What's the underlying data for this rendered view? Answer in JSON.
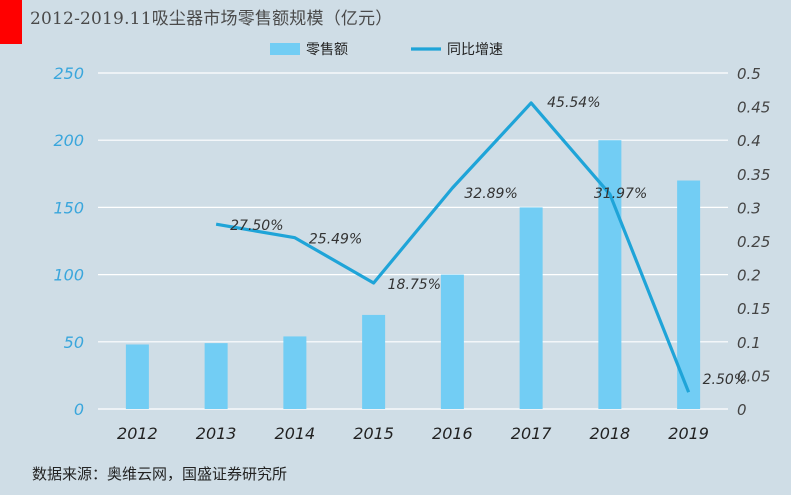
{
  "title": "2012-2019.11吸尘器市场零售额规模（亿元）",
  "source": "数据来源：奥维云网，国盛证券研究所",
  "colors": {
    "bar": "#72cdf4",
    "line": "#1fa4d8",
    "background": "#cfdde6",
    "left_axis_text": "#3aa6dc"
  },
  "chart_data": {
    "type": "bar",
    "categories": [
      "2012",
      "2013",
      "2014",
      "2015",
      "2016",
      "2017",
      "2018",
      "2019"
    ],
    "series": [
      {
        "name": "零售额",
        "type": "bar",
        "axis": "left",
        "values": [
          48,
          49,
          54,
          70,
          100,
          150,
          200,
          170
        ]
      },
      {
        "name": "同比增速",
        "type": "line",
        "axis": "right",
        "values": [
          null,
          0.275,
          0.2549,
          0.1875,
          0.3289,
          0.4554,
          0.3197,
          0.025
        ],
        "labels": [
          "",
          "27.50%",
          "25.49%",
          "18.75%",
          "32.89%",
          "45.54%",
          "31.97%",
          "2.50%"
        ]
      }
    ],
    "y_left": {
      "ylim": [
        0,
        250
      ],
      "ticks": [
        "0",
        "50",
        "100",
        "150",
        "200",
        "250"
      ]
    },
    "y_right": {
      "ylim": [
        0,
        0.5
      ],
      "ticks": [
        "0",
        "0.05",
        "0.1",
        "0.15",
        "0.2",
        "0.25",
        "0.3",
        "0.35",
        "0.4",
        "0.45",
        "0.5"
      ]
    },
    "grid": true,
    "legend_position": "top"
  }
}
